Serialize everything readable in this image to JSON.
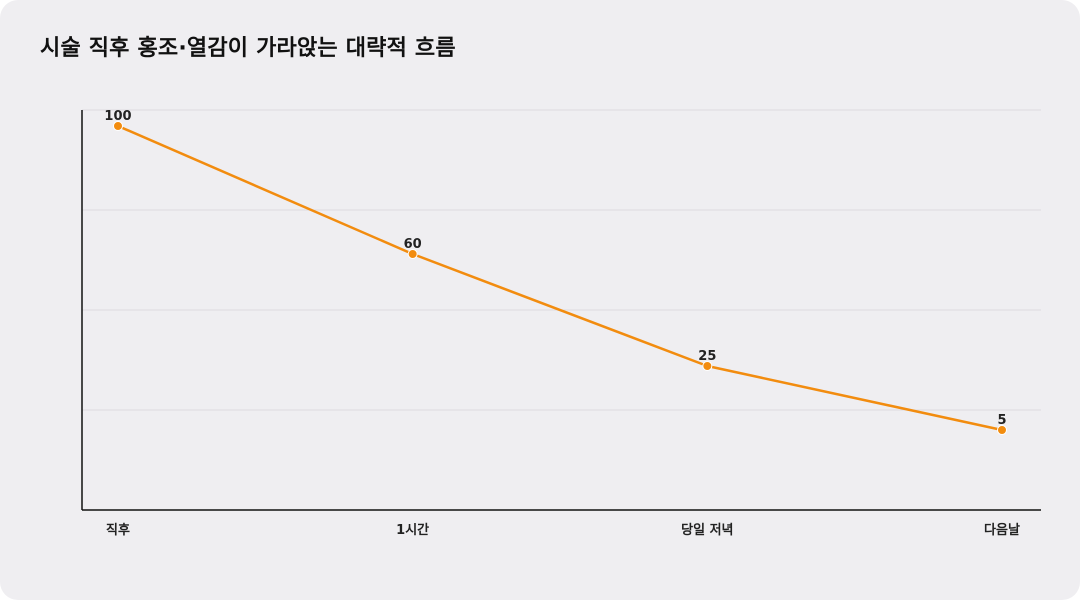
{
  "title": "시술 직후 홍조·열감이 가라앉는 대략적 흐름",
  "colors": {
    "line": "#f28c0f",
    "point": "#f28c0f",
    "background": "#efeef1",
    "grid": "#dcdbe0",
    "axis": "#111111"
  },
  "chart_data": {
    "type": "line",
    "title": "시술 직후 홍조·열감이 가라앉는 대략적 흐름",
    "categories": [
      "직후",
      "1시간",
      "당일 저녁",
      "다음날"
    ],
    "series": [
      {
        "values": [
          100,
          60,
          25,
          5
        ]
      }
    ],
    "data_labels": [
      "100",
      "60",
      "25",
      "5"
    ],
    "ylim": [
      -20,
      105
    ],
    "y_tick_labels_shown": false,
    "grid": true,
    "legend": "none",
    "xlabel": "",
    "ylabel": ""
  }
}
